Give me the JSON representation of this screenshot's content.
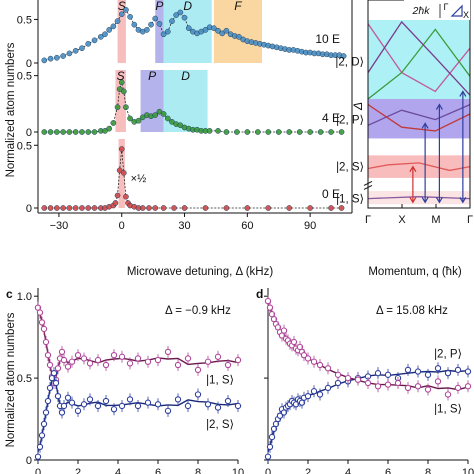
{
  "figure": {
    "panel_c_label": "c",
    "panel_d_label": "d"
  },
  "colors": {
    "blue_trace": "#4a8fc4",
    "green_trace": "#3a9a3a",
    "red_trace": "#d04848",
    "magenta": "#b0479a",
    "navy": "#2e3f9e",
    "S_band": "#f7b3b3",
    "P_band": "#a8a6e8",
    "D_band": "#9fe8f0",
    "F_band": "#f9cf8f",
    "cyan_fill": "#a4eef5",
    "violet_fill": "#a99bec",
    "pink_fill": "#f7b5b5",
    "lightpink_fill": "#fbe1e1"
  },
  "chart_data": [
    {
      "type": "line",
      "panel": "a",
      "xlabel": "Microwave detuning, Δ (kHz)",
      "ylabel": "Normalized atom numbers",
      "xlim": [
        -40,
        110
      ],
      "xticks": [
        "−30",
        "0",
        "30",
        "60",
        "90"
      ],
      "xtick_values": [
        -30,
        0,
        30,
        60,
        90
      ],
      "subplots": [
        {
          "label": "10 E",
          "label_sub": "r",
          "color": "#4a8fc4",
          "ylim": [
            0,
            0.7
          ],
          "yticks": [
            "0",
            "0.5"
          ],
          "ytick_values": [
            0,
            0.5
          ],
          "bands": [
            {
              "name": "S",
              "from": -2,
              "to": 2,
              "color": "#f7b3b3"
            },
            {
              "name": "P",
              "from": 16,
              "to": 20,
              "color": "#a8a6e8"
            },
            {
              "name": "D",
              "from": 20,
              "to": 43,
              "color": "#9fe8f0"
            },
            {
              "name": "F",
              "from": 44,
              "to": 67,
              "color": "#f9cf8f"
            }
          ],
          "x": [
            -37,
            -34,
            -31,
            -28,
            -25,
            -22,
            -19,
            -16,
            -13,
            -10,
            -8,
            -6,
            -4,
            -2,
            0,
            2,
            4,
            6,
            8,
            10,
            12,
            14,
            16,
            18,
            20,
            22,
            24,
            26,
            28,
            30,
            32,
            34,
            36,
            38,
            40,
            42,
            44,
            46,
            48,
            50,
            52,
            54,
            56,
            58,
            60,
            62,
            64,
            66,
            68,
            70,
            72,
            74,
            76,
            78,
            80,
            82,
            84,
            86,
            88,
            90,
            92,
            94,
            96,
            98,
            100,
            102,
            104,
            106
          ],
          "y": [
            0.03,
            0.05,
            0.06,
            0.08,
            0.11,
            0.14,
            0.17,
            0.22,
            0.26,
            0.3,
            0.33,
            0.38,
            0.42,
            0.48,
            0.56,
            0.61,
            0.53,
            0.44,
            0.38,
            0.36,
            0.38,
            0.44,
            0.51,
            0.45,
            0.33,
            0.36,
            0.48,
            0.55,
            0.58,
            0.52,
            0.4,
            0.36,
            0.34,
            0.36,
            0.38,
            0.41,
            0.4,
            0.37,
            0.34,
            0.37,
            0.33,
            0.31,
            0.3,
            0.27,
            0.25,
            0.24,
            0.23,
            0.22,
            0.21,
            0.2,
            0.19,
            0.18,
            0.17,
            0.16,
            0.15,
            0.15,
            0.14,
            0.13,
            0.12,
            0.12,
            0.11,
            0.11,
            0.1,
            0.1,
            0.09,
            0.09,
            0.09,
            0.08
          ]
        },
        {
          "label": "4 E",
          "label_sub": "r",
          "color": "#3a9a3a",
          "ylim": [
            0,
            0.55
          ],
          "yticks": [
            "0",
            "0.5"
          ],
          "ytick_values": [
            0,
            0.5
          ],
          "bands": [
            {
              "name": "S",
              "from": -3,
              "to": 2,
              "color": "#f7b3b3"
            },
            {
              "name": "P",
              "from": 9,
              "to": 20,
              "color": "#a8a6e8"
            },
            {
              "name": "D",
              "from": 20,
              "to": 41,
              "color": "#9fe8f0"
            }
          ],
          "x": [
            -37,
            -34,
            -31,
            -28,
            -25,
            -22,
            -19,
            -16,
            -13,
            -10,
            -8,
            -6,
            -4,
            -2,
            -1,
            0,
            1,
            2,
            4,
            6,
            8,
            10,
            12,
            14,
            16,
            18,
            20,
            22,
            24,
            26,
            28,
            30,
            32,
            34,
            36,
            38,
            40,
            42,
            46,
            50,
            55,
            60,
            65,
            70,
            75,
            80,
            85,
            90,
            95,
            100,
            105
          ],
          "y": [
            0.0,
            0.0,
            0.0,
            0.0,
            0.0,
            0.0,
            0.0,
            0.0,
            0.0,
            0.01,
            0.01,
            0.03,
            0.08,
            0.22,
            0.38,
            0.44,
            0.36,
            0.22,
            0.12,
            0.09,
            0.1,
            0.13,
            0.15,
            0.14,
            0.15,
            0.18,
            0.16,
            0.12,
            0.09,
            0.07,
            0.06,
            0.04,
            0.03,
            0.02,
            0.02,
            0.01,
            0.01,
            0.01,
            0.01,
            0.0,
            0.0,
            0.0,
            0.0,
            0.0,
            0.0,
            0.0,
            0.0,
            0.0,
            0.0,
            0.0,
            0.0
          ]
        },
        {
          "label": "0 E",
          "label_sub": "r",
          "color": "#d04848",
          "ylim": [
            0,
            0.55
          ],
          "yticks": [
            "0",
            "0.5"
          ],
          "ytick_values": [
            0,
            0.5
          ],
          "annotation": "×½",
          "bands": [
            {
              "name": "",
              "from": -1.5,
              "to": 1.5,
              "color": "#f7b3b3"
            }
          ],
          "x": [
            -37,
            -34,
            -31,
            -28,
            -25,
            -22,
            -19,
            -16,
            -13,
            -10,
            -8,
            -6,
            -4,
            -3,
            -2,
            -1,
            0,
            1,
            2,
            3,
            4,
            6,
            8,
            10,
            13,
            16,
            20,
            25,
            30,
            40,
            50,
            60,
            70,
            80,
            90,
            100,
            105
          ],
          "y": [
            0.0,
            0.0,
            0.0,
            0.0,
            0.0,
            0.0,
            0.0,
            0.0,
            0.0,
            0.0,
            0.0,
            0.01,
            0.02,
            0.04,
            0.1,
            0.3,
            0.47,
            0.28,
            0.09,
            0.04,
            0.02,
            0.01,
            0.0,
            0.0,
            0.0,
            0.0,
            0.0,
            0.0,
            0.0,
            0.0,
            0.0,
            0.0,
            0.0,
            0.0,
            0.0,
            0.0,
            0.0
          ]
        }
      ]
    },
    {
      "type": "line",
      "panel": "b",
      "xlabel": "Momentum, q (ħk)",
      "ylabel": "Δ",
      "xticks": [
        "Γ",
        "X",
        "M",
        "Γ"
      ],
      "xtick_values": [
        0,
        1,
        2,
        3
      ],
      "band_labels": [
        "|2, D⟩",
        "|2, P⟩",
        "|2, S⟩",
        "|1, S⟩"
      ],
      "scale_label": "2ħk",
      "inset_labels": [
        "Γ",
        "X"
      ],
      "bands": [
        {
          "name": "|2, D⟩",
          "from": 0.58,
          "to": 1.0,
          "color": "#a4eef5"
        },
        {
          "name": "|2, P⟩",
          "from": 0.37,
          "to": 0.58,
          "color": "#a99bec"
        },
        {
          "name": "|2, S⟩",
          "from": 0.16,
          "to": 0.28,
          "color": "#f7b5b5"
        },
        {
          "name": "|1, S⟩",
          "from": 0.02,
          "to": 0.09,
          "color": "#fbe1e1"
        }
      ]
    },
    {
      "type": "scatter",
      "panel": "c",
      "title": "Δ = −0.9 kHz",
      "ylabel": "Normalized atom numbers",
      "xlim": [
        0,
        10
      ],
      "ylim": [
        0,
        1.05
      ],
      "xticks": [
        "0",
        "2",
        "4",
        "6",
        "8",
        "10"
      ],
      "yticks": [
        "0",
        "0.5",
        "1.0"
      ],
      "series": [
        {
          "name": "|1, S⟩",
          "color": "#b0479a",
          "x": [
            0.0,
            0.1,
            0.2,
            0.3,
            0.4,
            0.5,
            0.6,
            0.7,
            0.8,
            0.9,
            1.0,
            1.1,
            1.2,
            1.3,
            1.5,
            1.7,
            2.0,
            2.3,
            2.6,
            3.0,
            3.4,
            3.8,
            4.2,
            4.6,
            5.0,
            5.5,
            6.0,
            6.5,
            7.0,
            7.5,
            8.0,
            8.5,
            9.0,
            9.5,
            10.0
          ],
          "y": [
            0.93,
            0.9,
            0.84,
            0.8,
            0.72,
            0.64,
            0.58,
            0.51,
            0.47,
            0.49,
            0.56,
            0.62,
            0.66,
            0.61,
            0.57,
            0.6,
            0.64,
            0.62,
            0.59,
            0.61,
            0.58,
            0.64,
            0.63,
            0.59,
            0.62,
            0.6,
            0.61,
            0.66,
            0.58,
            0.62,
            0.55,
            0.6,
            0.63,
            0.58,
            0.61
          ]
        },
        {
          "name": "|2, S⟩",
          "color": "#2e3f9e",
          "x": [
            0.0,
            0.1,
            0.2,
            0.3,
            0.4,
            0.5,
            0.6,
            0.7,
            0.8,
            0.9,
            1.0,
            1.1,
            1.2,
            1.3,
            1.5,
            1.7,
            2.0,
            2.3,
            2.6,
            3.0,
            3.4,
            3.8,
            4.2,
            4.6,
            5.0,
            5.5,
            6.0,
            6.5,
            7.0,
            7.5,
            8.0,
            8.5,
            9.0,
            9.5,
            10.0
          ],
          "y": [
            0.02,
            0.08,
            0.15,
            0.22,
            0.29,
            0.36,
            0.44,
            0.5,
            0.53,
            0.47,
            0.39,
            0.33,
            0.29,
            0.33,
            0.38,
            0.35,
            0.3,
            0.34,
            0.37,
            0.33,
            0.36,
            0.31,
            0.33,
            0.37,
            0.33,
            0.35,
            0.34,
            0.3,
            0.37,
            0.33,
            0.4,
            0.34,
            0.32,
            0.36,
            0.33
          ]
        }
      ]
    },
    {
      "type": "scatter",
      "panel": "d",
      "title": "Δ = 15.08 kHz",
      "xlim": [
        0,
        10
      ],
      "ylim": [
        0,
        1.05
      ],
      "xticks": [
        "0",
        "2",
        "4",
        "6",
        "8",
        "10"
      ],
      "series": [
        {
          "name": "|2, P⟩",
          "color": "#2e3f9e",
          "x": [
            0.0,
            0.1,
            0.2,
            0.3,
            0.4,
            0.5,
            0.6,
            0.7,
            0.8,
            0.9,
            1.0,
            1.1,
            1.2,
            1.3,
            1.4,
            1.5,
            1.6,
            1.7,
            1.8,
            2.0,
            2.3,
            2.6,
            3.0,
            3.5,
            4.0,
            4.5,
            5.0,
            5.5,
            6.0,
            6.5,
            7.0,
            7.5,
            8.0,
            8.5,
            9.0,
            9.5,
            10.0
          ],
          "y": [
            0.02,
            0.08,
            0.14,
            0.19,
            0.22,
            0.25,
            0.27,
            0.31,
            0.29,
            0.32,
            0.33,
            0.34,
            0.36,
            0.35,
            0.34,
            0.37,
            0.36,
            0.35,
            0.38,
            0.39,
            0.42,
            0.4,
            0.44,
            0.47,
            0.48,
            0.5,
            0.51,
            0.53,
            0.52,
            0.5,
            0.55,
            0.54,
            0.52,
            0.56,
            0.53,
            0.55,
            0.54
          ]
        },
        {
          "name": "|1, S⟩",
          "color": "#b0479a",
          "x": [
            0.0,
            0.1,
            0.2,
            0.3,
            0.4,
            0.5,
            0.6,
            0.7,
            0.8,
            0.9,
            1.0,
            1.1,
            1.2,
            1.3,
            1.4,
            1.5,
            1.6,
            1.7,
            1.8,
            2.0,
            2.3,
            2.6,
            3.0,
            3.5,
            4.0,
            4.5,
            5.0,
            5.5,
            6.0,
            6.5,
            7.0,
            7.5,
            8.0,
            8.5,
            9.0,
            9.5,
            10.0
          ],
          "y": [
            0.97,
            0.93,
            0.89,
            0.86,
            0.83,
            0.81,
            0.78,
            0.76,
            0.79,
            0.74,
            0.73,
            0.71,
            0.7,
            0.72,
            0.68,
            0.67,
            0.69,
            0.66,
            0.64,
            0.62,
            0.6,
            0.58,
            0.56,
            0.52,
            0.5,
            0.49,
            0.47,
            0.45,
            0.46,
            0.47,
            0.44,
            0.45,
            0.43,
            0.48,
            0.4,
            0.44,
            0.45
          ]
        }
      ]
    }
  ]
}
